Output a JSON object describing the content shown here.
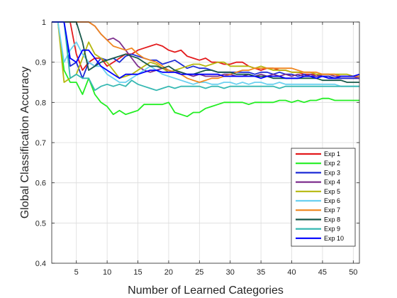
{
  "chart_data": {
    "type": "line",
    "title": "",
    "xlabel": "Number of Learned Categories",
    "ylabel": "Global Classification Accuracy",
    "xlim": [
      1,
      51
    ],
    "ylim": [
      0.4,
      1.0
    ],
    "xticks": [
      5,
      10,
      15,
      20,
      25,
      30,
      35,
      40,
      45,
      50
    ],
    "yticks": [
      0.4,
      0.5,
      0.6,
      0.7,
      0.8,
      0.9,
      1.0
    ],
    "ytick_labels": [
      "0.4",
      "0.5",
      "0.6",
      "0.7",
      "0.8",
      "0.9",
      "1"
    ],
    "grid": true,
    "legend_position": "bottom-right",
    "x": [
      1,
      2,
      3,
      4,
      5,
      6,
      7,
      8,
      9,
      10,
      11,
      12,
      13,
      14,
      15,
      16,
      17,
      18,
      19,
      20,
      21,
      22,
      23,
      24,
      25,
      26,
      27,
      28,
      29,
      30,
      31,
      32,
      33,
      34,
      35,
      36,
      37,
      38,
      39,
      40,
      41,
      42,
      43,
      44,
      45,
      46,
      47,
      48,
      49,
      50,
      51
    ],
    "series": [
      {
        "name": "Exp 1",
        "color": "#e31a1c",
        "values": [
          1,
          1,
          1,
          1,
          0.92,
          0.88,
          0.9,
          0.91,
          0.91,
          0.89,
          0.9,
          0.91,
          0.92,
          0.92,
          0.93,
          0.935,
          0.94,
          0.945,
          0.94,
          0.93,
          0.925,
          0.93,
          0.915,
          0.91,
          0.905,
          0.91,
          0.9,
          0.9,
          0.895,
          0.895,
          0.9,
          0.9,
          0.89,
          0.885,
          0.88,
          0.885,
          0.885,
          0.88,
          0.88,
          0.875,
          0.875,
          0.87,
          0.87,
          0.87,
          0.865,
          0.865,
          0.86,
          0.86,
          0.86,
          0.86,
          0.86
        ]
      },
      {
        "name": "Exp 2",
        "color": "#22ee22",
        "values": [
          1,
          1,
          0.88,
          0.85,
          0.85,
          0.82,
          0.86,
          0.82,
          0.8,
          0.79,
          0.77,
          0.78,
          0.77,
          0.775,
          0.78,
          0.795,
          0.795,
          0.795,
          0.795,
          0.8,
          0.775,
          0.77,
          0.765,
          0.775,
          0.775,
          0.785,
          0.79,
          0.795,
          0.8,
          0.8,
          0.8,
          0.8,
          0.795,
          0.8,
          0.8,
          0.8,
          0.8,
          0.805,
          0.805,
          0.8,
          0.805,
          0.8,
          0.805,
          0.805,
          0.81,
          0.81,
          0.805,
          0.805,
          0.805,
          0.805,
          0.805
        ]
      },
      {
        "name": "Exp 3",
        "color": "#1d2bd6",
        "values": [
          1,
          1,
          1,
          0.89,
          0.9,
          0.86,
          0.9,
          0.89,
          0.91,
          0.905,
          0.91,
          0.9,
          0.915,
          0.92,
          0.915,
          0.91,
          0.905,
          0.905,
          0.895,
          0.9,
          0.905,
          0.895,
          0.885,
          0.89,
          0.885,
          0.885,
          0.88,
          0.875,
          0.875,
          0.875,
          0.875,
          0.875,
          0.875,
          0.87,
          0.875,
          0.875,
          0.87,
          0.875,
          0.87,
          0.87,
          0.865,
          0.87,
          0.865,
          0.865,
          0.865,
          0.865,
          0.86,
          0.86,
          0.86,
          0.86,
          0.86
        ]
      },
      {
        "name": "Exp 4",
        "color": "#7e2f8e",
        "values": [
          1,
          1,
          1,
          1,
          1,
          1,
          1,
          0.99,
          0.97,
          0.955,
          0.96,
          0.95,
          0.93,
          0.91,
          0.89,
          0.88,
          0.875,
          0.88,
          0.885,
          0.88,
          0.875,
          0.875,
          0.87,
          0.865,
          0.87,
          0.865,
          0.865,
          0.865,
          0.87,
          0.87,
          0.865,
          0.865,
          0.87,
          0.865,
          0.87,
          0.865,
          0.87,
          0.865,
          0.87,
          0.865,
          0.87,
          0.865,
          0.87,
          0.865,
          0.87,
          0.87,
          0.865,
          0.865,
          0.865,
          0.865,
          0.86
        ]
      },
      {
        "name": "Exp 5",
        "color": "#b5b80f",
        "values": [
          1,
          1,
          0.85,
          0.86,
          0.87,
          0.91,
          0.95,
          0.92,
          0.91,
          0.9,
          0.88,
          0.86,
          0.865,
          0.87,
          0.88,
          0.89,
          0.9,
          0.895,
          0.885,
          0.875,
          0.88,
          0.885,
          0.89,
          0.895,
          0.895,
          0.89,
          0.895,
          0.9,
          0.9,
          0.89,
          0.89,
          0.89,
          0.89,
          0.885,
          0.89,
          0.885,
          0.88,
          0.88,
          0.88,
          0.875,
          0.875,
          0.875,
          0.875,
          0.87,
          0.87,
          0.87,
          0.87,
          0.87,
          0.87,
          0.865,
          0.865
        ]
      },
      {
        "name": "Exp 6",
        "color": "#6bd0f0",
        "values": [
          1,
          1,
          0.9,
          0.93,
          0.95,
          0.92,
          0.9,
          0.89,
          0.89,
          0.87,
          0.86,
          0.85,
          0.85,
          0.86,
          0.87,
          0.88,
          0.89,
          0.88,
          0.87,
          0.865,
          0.86,
          0.855,
          0.85,
          0.845,
          0.85,
          0.85,
          0.845,
          0.845,
          0.85,
          0.85,
          0.845,
          0.85,
          0.845,
          0.85,
          0.85,
          0.845,
          0.845,
          0.85,
          0.845,
          0.845,
          0.845,
          0.845,
          0.845,
          0.845,
          0.845,
          0.845,
          0.845,
          0.84,
          0.84,
          0.84,
          0.84
        ]
      },
      {
        "name": "Exp 7",
        "color": "#f0861e",
        "values": [
          1,
          1,
          1,
          1,
          1,
          1,
          1,
          0.99,
          0.97,
          0.955,
          0.94,
          0.935,
          0.93,
          0.935,
          0.92,
          0.91,
          0.905,
          0.9,
          0.89,
          0.88,
          0.875,
          0.87,
          0.86,
          0.855,
          0.85,
          0.855,
          0.86,
          0.86,
          0.865,
          0.87,
          0.875,
          0.88,
          0.88,
          0.885,
          0.885,
          0.885,
          0.885,
          0.885,
          0.885,
          0.885,
          0.88,
          0.875,
          0.875,
          0.875,
          0.87,
          0.87,
          0.87,
          0.865,
          0.865,
          0.865,
          0.865
        ]
      },
      {
        "name": "Exp 8",
        "color": "#17594a",
        "values": [
          1,
          1,
          1,
          1,
          1,
          0.95,
          0.88,
          0.89,
          0.9,
          0.905,
          0.91,
          0.915,
          0.92,
          0.915,
          0.91,
          0.9,
          0.89,
          0.89,
          0.885,
          0.89,
          0.88,
          0.875,
          0.87,
          0.87,
          0.875,
          0.88,
          0.88,
          0.875,
          0.875,
          0.875,
          0.87,
          0.87,
          0.87,
          0.865,
          0.865,
          0.865,
          0.86,
          0.86,
          0.86,
          0.86,
          0.86,
          0.86,
          0.86,
          0.86,
          0.855,
          0.855,
          0.855,
          0.855,
          0.85,
          0.85,
          0.85
        ]
      },
      {
        "name": "Exp 9",
        "color": "#35b8b2",
        "values": [
          1,
          1,
          1,
          0.86,
          0.87,
          0.86,
          0.86,
          0.83,
          0.84,
          0.845,
          0.84,
          0.845,
          0.84,
          0.855,
          0.845,
          0.84,
          0.835,
          0.83,
          0.835,
          0.84,
          0.835,
          0.84,
          0.84,
          0.84,
          0.84,
          0.835,
          0.84,
          0.84,
          0.835,
          0.84,
          0.84,
          0.84,
          0.84,
          0.84,
          0.84,
          0.84,
          0.84,
          0.835,
          0.84,
          0.84,
          0.84,
          0.84,
          0.84,
          0.84,
          0.84,
          0.84,
          0.84,
          0.84,
          0.84,
          0.84,
          0.84
        ]
      },
      {
        "name": "Exp 10",
        "color": "#0000ff",
        "values": [
          1,
          1,
          1,
          0.91,
          0.9,
          0.93,
          0.93,
          0.91,
          0.89,
          0.88,
          0.87,
          0.86,
          0.87,
          0.87,
          0.87,
          0.875,
          0.88,
          0.88,
          0.875,
          0.875,
          0.875,
          0.87,
          0.87,
          0.87,
          0.87,
          0.87,
          0.87,
          0.87,
          0.865,
          0.865,
          0.865,
          0.865,
          0.865,
          0.865,
          0.86,
          0.865,
          0.865,
          0.865,
          0.86,
          0.86,
          0.86,
          0.865,
          0.865,
          0.86,
          0.865,
          0.86,
          0.86,
          0.865,
          0.865,
          0.865,
          0.87
        ]
      }
    ]
  }
}
